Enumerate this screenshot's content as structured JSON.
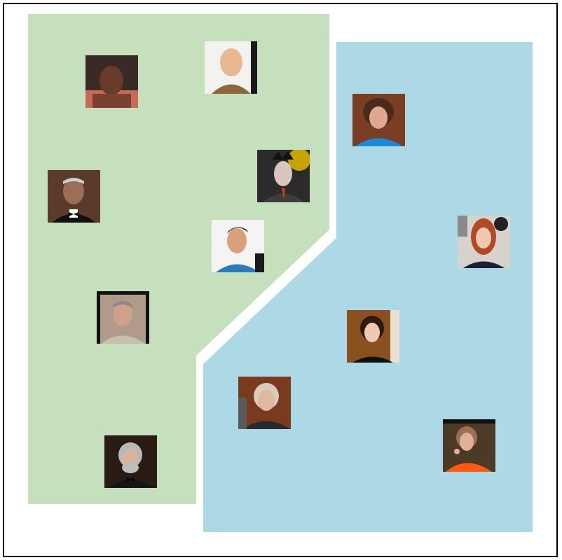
{
  "colors": {
    "frame_border": "#000000",
    "background": "#ffffff",
    "region_left": "#c6e0bd",
    "region_right": "#add8e6"
  },
  "regions": [
    {
      "id": "left-region",
      "color_key": "region_left"
    },
    {
      "id": "right-region",
      "color_key": "region_right"
    }
  ],
  "photos": [
    {
      "id": "boxer-shirtless",
      "group": "left",
      "desc_icon": "face-portrait-icon"
    },
    {
      "id": "bald-man-sweater",
      "group": "left",
      "desc_icon": "face-portrait-icon"
    },
    {
      "id": "spiky-hair-man",
      "group": "left",
      "desc_icon": "face-portrait-icon"
    },
    {
      "id": "elder-man-bowtie",
      "group": "left",
      "desc_icon": "face-portrait-icon"
    },
    {
      "id": "young-man-blue",
      "group": "left",
      "desc_icon": "face-portrait-icon"
    },
    {
      "id": "gray-hair-man",
      "group": "left",
      "desc_icon": "face-portrait-icon"
    },
    {
      "id": "bearded-man-tux",
      "group": "left",
      "desc_icon": "face-portrait-icon"
    },
    {
      "id": "woman-curly-blue",
      "group": "right",
      "desc_icon": "face-portrait-icon"
    },
    {
      "id": "redhead-woman",
      "group": "right",
      "desc_icon": "face-portrait-icon"
    },
    {
      "id": "dark-hair-woman",
      "group": "right",
      "desc_icon": "face-portrait-icon"
    },
    {
      "id": "blonde-woman-gray",
      "group": "right",
      "desc_icon": "face-portrait-icon"
    },
    {
      "id": "woman-orange-jacket",
      "group": "right",
      "desc_icon": "face-portrait-icon"
    }
  ]
}
